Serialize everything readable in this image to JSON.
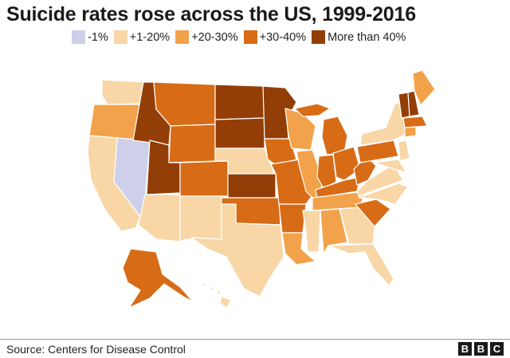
{
  "title": "Suicide rates rose across the US, 1999-2016",
  "legend": [
    {
      "label": "-1%",
      "color": "#cdd0e8"
    },
    {
      "label": "+1-20%",
      "color": "#f8d6a6"
    },
    {
      "label": "+20-30%",
      "color": "#f2a24a"
    },
    {
      "label": "+30-40%",
      "color": "#d86b16"
    },
    {
      "label": "More than 40%",
      "color": "#933e06"
    }
  ],
  "source": "Source: Centers for Disease Control",
  "logo": [
    "B",
    "B",
    "C"
  ]
}
